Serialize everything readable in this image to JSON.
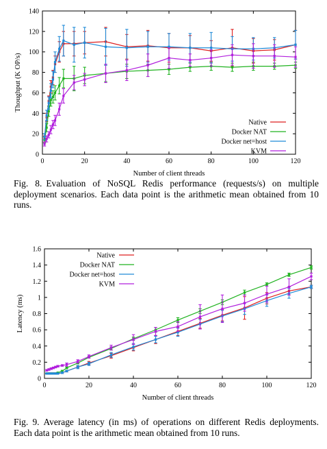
{
  "chart_data": [
    {
      "type": "line",
      "xlabel": "Number of client threads",
      "ylabel": "Thoughput (K OP/s)",
      "xlim": [
        0,
        120
      ],
      "ylim": [
        0,
        140
      ],
      "xticks": [
        0,
        20,
        40,
        60,
        80,
        100,
        120
      ],
      "yticks": [
        0,
        20,
        40,
        60,
        80,
        100,
        120,
        140
      ],
      "legend_position": "bottom-right",
      "grid": false,
      "series": [
        {
          "name": "Native",
          "color": "#dd1f1f",
          "x": [
            1,
            2,
            3,
            4,
            5,
            6,
            8,
            10,
            15,
            20,
            30,
            40,
            50,
            60,
            70,
            80,
            90,
            100,
            110,
            120
          ],
          "y": [
            15,
            36,
            52,
            66,
            75,
            88,
            100,
            108,
            108,
            109,
            110,
            105,
            106,
            104,
            104,
            101,
            104,
            101,
            102,
            107
          ],
          "err": [
            3,
            4,
            5,
            6,
            7,
            8,
            10,
            12,
            12,
            11,
            14,
            12,
            15,
            14,
            12,
            10,
            18,
            12,
            10,
            14
          ]
        },
        {
          "name": "Docker NAT",
          "color": "#1fb21f",
          "x": [
            1,
            2,
            3,
            4,
            5,
            6,
            8,
            10,
            15,
            20,
            30,
            40,
            50,
            60,
            70,
            80,
            90,
            100,
            110,
            120
          ],
          "y": [
            14,
            26,
            42,
            53,
            56,
            60,
            67,
            74,
            74,
            77,
            79,
            81,
            82,
            83,
            85,
            86,
            85,
            86,
            86,
            87
          ],
          "err": [
            3,
            4,
            5,
            6,
            6,
            7,
            8,
            9,
            12,
            8,
            8,
            7,
            6,
            5,
            4,
            4,
            4,
            4,
            3,
            3
          ]
        },
        {
          "name": "Docker net=host",
          "color": "#1f8ad8",
          "x": [
            1,
            2,
            3,
            4,
            5,
            6,
            8,
            10,
            15,
            20,
            30,
            40,
            50,
            60,
            70,
            80,
            90,
            100,
            110,
            120
          ],
          "y": [
            17,
            38,
            50,
            62,
            73,
            90,
            103,
            111,
            107,
            109,
            105,
            104,
            105,
            105,
            104,
            104,
            103,
            103,
            104,
            107
          ],
          "err": [
            3,
            5,
            6,
            7,
            8,
            10,
            12,
            15,
            17,
            15,
            18,
            18,
            15,
            13,
            14,
            15,
            12,
            11,
            10,
            14
          ]
        },
        {
          "name": "KVM",
          "color": "#b11fdd",
          "x": [
            1,
            2,
            3,
            4,
            5,
            6,
            8,
            10,
            15,
            20,
            30,
            40,
            50,
            60,
            70,
            80,
            90,
            100,
            110,
            120
          ],
          "y": [
            10,
            15,
            19,
            24,
            29,
            33,
            44,
            57,
            70,
            73,
            79,
            82,
            87,
            94,
            92,
            94,
            97,
            96,
            96,
            95
          ],
          "err": [
            2,
            3,
            3,
            4,
            4,
            5,
            6,
            7,
            7,
            6,
            9,
            10,
            11,
            10,
            6,
            8,
            10,
            12,
            11,
            10
          ]
        }
      ]
    },
    {
      "type": "line",
      "xlabel": "Number of client threads",
      "ylabel": "Latency (ms)",
      "xlim": [
        0,
        120
      ],
      "ylim": [
        0,
        1.6
      ],
      "xticks": [
        0,
        20,
        40,
        60,
        80,
        100,
        120
      ],
      "yticks": [
        0,
        0.2,
        0.4,
        0.6,
        0.8,
        1,
        1.2,
        1.4,
        1.6
      ],
      "legend_position": "top-left",
      "grid": false,
      "series": [
        {
          "name": "Native",
          "color": "#dd1f1f",
          "x": [
            1,
            2,
            3,
            4,
            5,
            6,
            8,
            10,
            15,
            20,
            30,
            40,
            50,
            60,
            70,
            80,
            90,
            100,
            110,
            120
          ],
          "y": [
            0.06,
            0.06,
            0.06,
            0.06,
            0.06,
            0.06,
            0.07,
            0.09,
            0.14,
            0.19,
            0.28,
            0.38,
            0.48,
            0.58,
            0.68,
            0.78,
            0.87,
            0.99,
            1.08,
            1.13
          ],
          "err": [
            0.005,
            0.005,
            0.005,
            0.005,
            0.005,
            0.005,
            0.01,
            0.01,
            0.01,
            0.02,
            0.03,
            0.04,
            0.05,
            0.05,
            0.06,
            0.07,
            0.14,
            0.07,
            0.05,
            0.02
          ]
        },
        {
          "name": "Docker NAT",
          "color": "#1fb21f",
          "x": [
            1,
            2,
            3,
            4,
            5,
            6,
            8,
            10,
            15,
            20,
            30,
            40,
            50,
            60,
            70,
            80,
            90,
            100,
            110,
            120
          ],
          "y": [
            0.06,
            0.06,
            0.06,
            0.06,
            0.06,
            0.07,
            0.09,
            0.13,
            0.19,
            0.26,
            0.37,
            0.49,
            0.6,
            0.72,
            0.83,
            0.94,
            1.06,
            1.16,
            1.28,
            1.37
          ],
          "err": [
            0.005,
            0.005,
            0.005,
            0.005,
            0.005,
            0.005,
            0.01,
            0.01,
            0.01,
            0.01,
            0.02,
            0.02,
            0.03,
            0.03,
            0.03,
            0.03,
            0.03,
            0.02,
            0.02,
            0.02
          ]
        },
        {
          "name": "Docker net=host",
          "color": "#1f8ad8",
          "x": [
            1,
            2,
            3,
            4,
            5,
            6,
            8,
            10,
            15,
            20,
            30,
            40,
            50,
            60,
            70,
            80,
            90,
            100,
            110,
            120
          ],
          "y": [
            0.06,
            0.06,
            0.06,
            0.06,
            0.06,
            0.06,
            0.07,
            0.09,
            0.14,
            0.18,
            0.29,
            0.39,
            0.48,
            0.57,
            0.67,
            0.77,
            0.86,
            0.96,
            1.05,
            1.13
          ],
          "err": [
            0.005,
            0.005,
            0.005,
            0.005,
            0.005,
            0.005,
            0.01,
            0.01,
            0.02,
            0.02,
            0.03,
            0.04,
            0.04,
            0.05,
            0.06,
            0.07,
            0.07,
            0.07,
            0.06,
            0.02
          ]
        },
        {
          "name": "KVM",
          "color": "#b11fdd",
          "x": [
            1,
            2,
            3,
            4,
            5,
            6,
            8,
            10,
            15,
            20,
            30,
            40,
            50,
            60,
            70,
            80,
            90,
            100,
            110,
            120
          ],
          "y": [
            0.1,
            0.11,
            0.12,
            0.13,
            0.14,
            0.15,
            0.16,
            0.17,
            0.21,
            0.27,
            0.38,
            0.48,
            0.58,
            0.64,
            0.76,
            0.86,
            0.93,
            1.04,
            1.13,
            1.26
          ],
          "err": [
            0.01,
            0.01,
            0.01,
            0.01,
            0.01,
            0.01,
            0.01,
            0.02,
            0.02,
            0.02,
            0.03,
            0.06,
            0.05,
            0.06,
            0.15,
            0.17,
            0.1,
            0.1,
            0.1,
            0.04
          ]
        }
      ]
    }
  ],
  "captions": [
    {
      "number": "Fig. 8.",
      "text": "Evaluation of NoSQL Redis performance (requests/s) on multiple deployment scenarios. Each data point is the arithmetic mean obtained from 10 runs."
    },
    {
      "number": "Fig. 9.",
      "text": "Average latency (in ms) of operations on different Redis deployments. Each data point is the arithmetic mean obtained from 10 runs."
    }
  ]
}
